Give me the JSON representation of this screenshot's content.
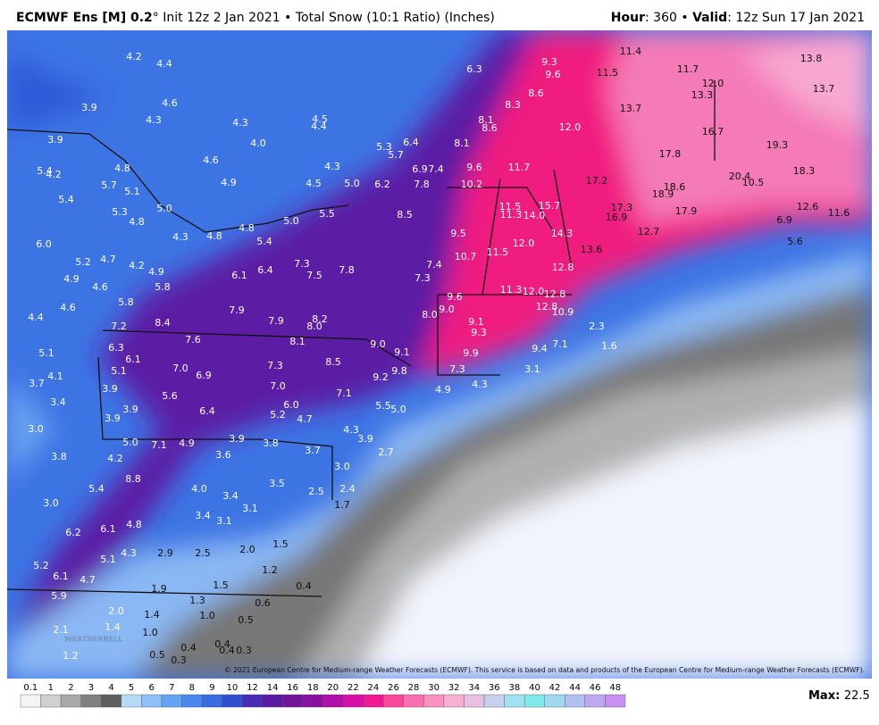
{
  "header": {
    "model": "ECMWF Ens [M] 0.2",
    "title_rest": "° Init 12z 2 Jan 2021 • Total Snow (10:1 Ratio) (Inches)",
    "hour_label": "Hour",
    "hour_text": ": 360 •",
    "valid_label": "Valid",
    "valid_text": ": 12z Sun 17 Jan 2021"
  },
  "map": {
    "labels": [
      4.2,
      4.4,
      4.6,
      3.9,
      4.3,
      4.3,
      4.5,
      4.4,
      6.3,
      9.3,
      9.6,
      11.5,
      11.4,
      11.7,
      {
        "value": 12,
        "label": "12.0"
      },
      13.3,
      13.8,
      13.7,
      8.6,
      8.3,
      13.7,
      8.1,
      8.6,
      {
        "value": 12,
        "label": "12.0"
      },
      16.7,
      3.9,
      {
        "value": 4,
        "label": "4.0"
      },
      5.3,
      6.4,
      5.7,
      8.1,
      17.8,
      19.3,
      5.4,
      4.2,
      4.8,
      4.6,
      4.3,
      6.9,
      7.4,
      9.6,
      11.7,
      18.3,
      5.7,
      4.9,
      4.5,
      {
        "value": 5,
        "label": "5.0"
      },
      6.2,
      7.8,
      10.2,
      17.2,
      18.6,
      20.4,
      10.5,
      18.9,
      5.1,
      5.4,
      5.3,
      {
        "value": 5,
        "label": "5.0"
      },
      4.8,
      {
        "value": 5,
        "label": "5.0"
      },
      5.5,
      8.5,
      11.5,
      11.3,
      {
        "value": 14,
        "label": "14.0"
      },
      15.7,
      17.3,
      16.9,
      17.9,
      12.7,
      12.6,
      11.6,
      6.9,
      {
        "value": 6,
        "label": "6.0"
      },
      4.3,
      4.8,
      4.8,
      5.4,
      9.5,
      {
        "value": 12,
        "label": "12.0"
      },
      14.3,
      13.6,
      5.6,
      5.2,
      4.7,
      4.2,
      4.9,
      7.3,
      7.8,
      7.4,
      10.7,
      11.5,
      4.9,
      6.1,
      6.4,
      7.5,
      7.3,
      12.8,
      4.6,
      5.8,
      11.3,
      {
        "value": 12,
        "label": "12.0"
      },
      12.8,
      5.8,
      9.6,
      12.8,
      10.9,
      4.6,
      4.4,
      7.9,
      {
        "value": 9,
        "label": "9.0"
      },
      {
        "value": 8,
        "label": "8.0"
      },
      7.2,
      8.4,
      7.9,
      {
        "value": 8,
        "label": "8.0"
      },
      8.2,
      9.1,
      2.3,
      9.3,
      7.6,
      8.1,
      {
        "value": 9,
        "label": "9.0"
      },
      6.3,
      9.1,
      9.9,
      9.4,
      7.1,
      1.6,
      5.1,
      6.1,
      8.5,
      5.1,
      {
        "value": 7,
        "label": "7.0"
      },
      6.9,
      7.3,
      9.8,
      7.3,
      3.1,
      4.1,
      9.2,
      3.7,
      3.9,
      {
        "value": 7,
        "label": "7.0"
      },
      7.1,
      5.6,
      4.9,
      4.3,
      3.4,
      3.9,
      {
        "value": 6,
        "label": "6.0"
      },
      6.4,
      5.2,
      4.7,
      5.5,
      {
        "value": 5,
        "label": "5.0"
      },
      3.9,
      {
        "value": 3,
        "label": "3.0"
      },
      4.3,
      {
        "value": 5,
        "label": "5.0"
      },
      7.1,
      4.9,
      3.9,
      3.8,
      3.9,
      3.7,
      3.6,
      2.7,
      3.8,
      4.2,
      {
        "value": 3,
        "label": "3.0"
      },
      8.8,
      {
        "value": 4,
        "label": "4.0"
      },
      5.4,
      3.5,
      3.4,
      2.5,
      2.4,
      {
        "value": 3,
        "label": "3.0"
      },
      1.7,
      3.1,
      3.4,
      3.1,
      6.1,
      4.8,
      6.2,
      1.5,
      {
        "value": 2,
        "label": "2.0"
      },
      4.3,
      2.9,
      2.5,
      5.1,
      5.2,
      1.2,
      6.1,
      4.7,
      1.9,
      1.5,
      0.4,
      5.9,
      1.3,
      0.6,
      {
        "value": 2,
        "label": "2.0"
      },
      1.4,
      {
        "value": 1,
        "label": "1.0"
      },
      0.5,
      1.4,
      {
        "value": 1,
        "label": "1.0"
      },
      2.1,
      0.4,
      0.4,
      0.4,
      0.3,
      1.2,
      0.5,
      0.3
    ]
  },
  "copyright": "© 2021 European Centre for Medium-range Weather Forecasts (ECMWF). This service is based on data and products of the European Centre for Medium-range Weather Forecasts (ECMWF).",
  "watermark": "WEATHERBELL",
  "colorbar": {
    "ticks": [
      0.1,
      1,
      2,
      3,
      4,
      5,
      6,
      7,
      8,
      9,
      10,
      12,
      14,
      16,
      18,
      20,
      22,
      24,
      26,
      28,
      30,
      32,
      34,
      36,
      38,
      40,
      42,
      44,
      46,
      48
    ],
    "colors": [
      "#f4f4f4",
      "#cfcfcf",
      "#a8a8a8",
      "#808080",
      "#5e5e5e",
      "#b8d8f8",
      "#8ec0f8",
      "#64a4f4",
      "#4a88ee",
      "#3a6ce0",
      "#2c50d0",
      "#4a2ab8",
      "#5a1aa0",
      "#70149a",
      "#8a10a0",
      "#b010a8",
      "#d810a8",
      "#f01890",
      "#f84898",
      "#f870b0",
      "#f890c0",
      "#f8b0d0",
      "#e8c0e0",
      "#c8d0f0",
      "#a0e0f0",
      "#80e8e8",
      "#a0d8f0",
      "#b0c0f0",
      "#c0a8f0",
      "#c890f0"
    ],
    "max_label": "Max:",
    "max_value": 22.5
  }
}
